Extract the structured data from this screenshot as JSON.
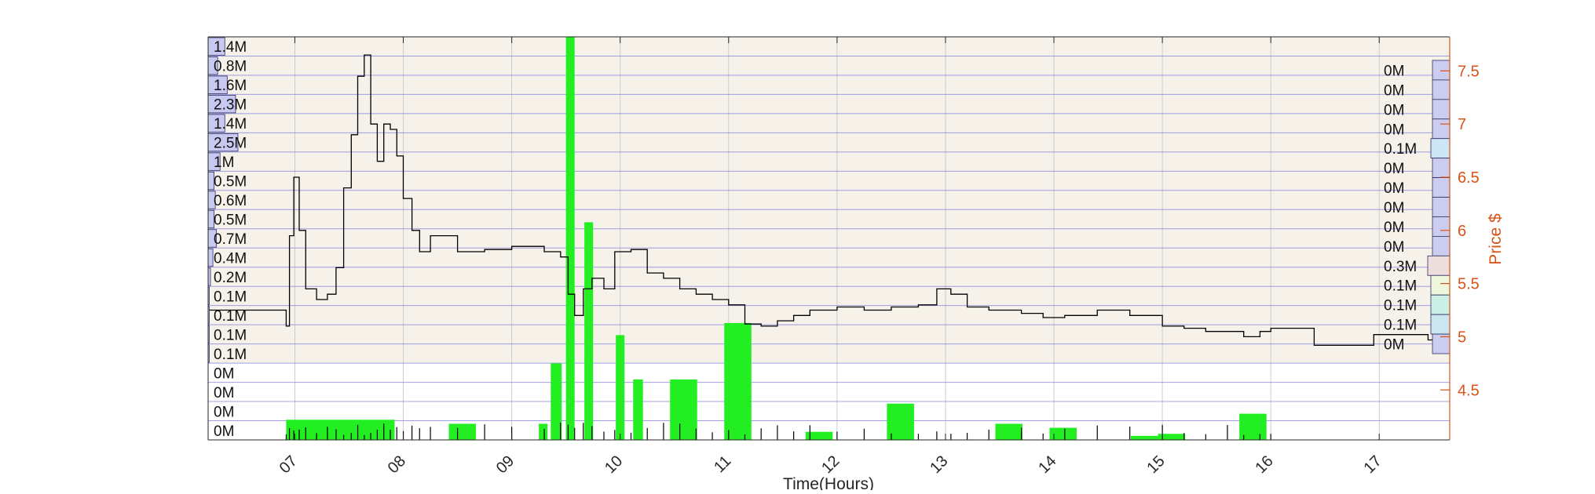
{
  "chart_data": {
    "type": "bar",
    "title": "",
    "xlabel": "Time(Hours)",
    "ylabel_right": "Price $",
    "x_range_hours": [
      6.2,
      17.65
    ],
    "x_ticks": [
      {
        "hour": 7,
        "label": "07"
      },
      {
        "hour": 8,
        "label": "08"
      },
      {
        "hour": 9,
        "label": "09"
      },
      {
        "hour": 10,
        "label": "10"
      },
      {
        "hour": 11,
        "label": "11"
      },
      {
        "hour": 12,
        "label": "12"
      },
      {
        "hour": 13,
        "label": "13"
      },
      {
        "hour": 14,
        "label": "14"
      },
      {
        "hour": 15,
        "label": "15"
      },
      {
        "hour": 16,
        "label": "16"
      },
      {
        "hour": 17,
        "label": "17"
      }
    ],
    "price_axis": {
      "range": [
        4.03,
        7.82
      ],
      "ticks": [
        {
          "value": 4.5,
          "label": "4.5"
        },
        {
          "value": 5,
          "label": "5"
        },
        {
          "value": 5.5,
          "label": "5.5"
        },
        {
          "value": 6,
          "label": "6"
        },
        {
          "value": 6.5,
          "label": "6.5"
        },
        {
          "value": 7,
          "label": "7"
        },
        {
          "value": 7.5,
          "label": "7.5"
        }
      ]
    },
    "grid": true,
    "colors": {
      "volume_bars": "#22ee22",
      "price_line": "#000000",
      "price_axis": "#d95319",
      "grid_blue": "#8080e0",
      "grid_light": "#cccccc",
      "upper_band": "#f6f2ea",
      "lower_band": "#ffffff"
    },
    "left_volume_profile": {
      "labels": [
        "1.4M",
        "0.8M",
        "1.6M",
        "2.3M",
        "1.4M",
        "2.5M",
        "1M",
        "0.5M",
        "0.6M",
        "0.5M",
        "0.7M",
        "0.4M",
        "0.2M",
        "0.1M",
        "0.1M",
        "0.1M",
        "0.1M",
        "0M",
        "0M",
        "0M",
        "0M"
      ],
      "values_millions": [
        1.4,
        0.8,
        1.6,
        2.3,
        1.4,
        2.5,
        1.0,
        0.5,
        0.6,
        0.5,
        0.7,
        0.4,
        0.2,
        0.1,
        0.1,
        0.1,
        0.1,
        0,
        0,
        0,
        0
      ]
    },
    "right_volume_profile": {
      "labels": [
        "0M",
        "0M",
        "0M",
        "0M",
        "0.1M",
        "0M",
        "0M",
        "0M",
        "0M",
        "0M",
        "0.3M",
        "0.1M",
        "0.1M",
        "0.1M",
        "0M"
      ],
      "values_millions": [
        0,
        0,
        0,
        0,
        0.1,
        0,
        0,
        0,
        0,
        0,
        0.3,
        0.1,
        0.1,
        0.1,
        0
      ],
      "colors": [
        "#ccccee",
        "#ccccee",
        "#ccccee",
        "#ccccee",
        "#cce6f6",
        "#ccccee",
        "#ccccee",
        "#ccccee",
        "#ccccee",
        "#ccccee",
        "#eedddd",
        "#eef6dd",
        "#ccf0e6",
        "#cce6f0",
        "#ccccee"
      ]
    },
    "volume_bars": [
      {
        "start": 6.92,
        "end": 7.42,
        "volume_rel": 0.05
      },
      {
        "start": 7.42,
        "end": 7.92,
        "volume_rel": 0.05
      },
      {
        "start": 8.42,
        "end": 8.67,
        "volume_rel": 0.04
      },
      {
        "start": 9.25,
        "end": 9.33,
        "volume_rel": 0.04
      },
      {
        "start": 9.36,
        "end": 9.46,
        "volume_rel": 0.19
      },
      {
        "start": 9.5,
        "end": 9.58,
        "volume_rel": 1.0
      },
      {
        "start": 9.67,
        "end": 9.75,
        "volume_rel": 0.54
      },
      {
        "start": 9.96,
        "end": 10.04,
        "volume_rel": 0.26
      },
      {
        "start": 10.12,
        "end": 10.21,
        "volume_rel": 0.15
      },
      {
        "start": 10.46,
        "end": 10.71,
        "volume_rel": 0.15
      },
      {
        "start": 10.96,
        "end": 11.21,
        "volume_rel": 0.29
      },
      {
        "start": 11.71,
        "end": 11.96,
        "volume_rel": 0.02
      },
      {
        "start": 12.46,
        "end": 12.71,
        "volume_rel": 0.09
      },
      {
        "start": 13.46,
        "end": 13.71,
        "volume_rel": 0.04
      },
      {
        "start": 13.96,
        "end": 14.21,
        "volume_rel": 0.03
      },
      {
        "start": 14.71,
        "end": 14.96,
        "volume_rel": 0.01
      },
      {
        "start": 14.96,
        "end": 15.21,
        "volume_rel": 0.015
      },
      {
        "start": 15.71,
        "end": 15.96,
        "volume_rel": 0.065
      }
    ],
    "price_series": [
      {
        "hour": 6.2,
        "price": 5.25
      },
      {
        "hour": 6.9,
        "price": 5.25
      },
      {
        "hour": 6.92,
        "price": 5.1
      },
      {
        "hour": 6.95,
        "price": 5.95
      },
      {
        "hour": 6.99,
        "price": 6.5
      },
      {
        "hour": 7.04,
        "price": 6.0
      },
      {
        "hour": 7.1,
        "price": 5.45
      },
      {
        "hour": 7.2,
        "price": 5.35
      },
      {
        "hour": 7.3,
        "price": 5.4
      },
      {
        "hour": 7.38,
        "price": 5.65
      },
      {
        "hour": 7.45,
        "price": 6.4
      },
      {
        "hour": 7.52,
        "price": 6.9
      },
      {
        "hour": 7.58,
        "price": 7.45
      },
      {
        "hour": 7.64,
        "price": 7.65
      },
      {
        "hour": 7.7,
        "price": 7.0
      },
      {
        "hour": 7.76,
        "price": 6.65
      },
      {
        "hour": 7.82,
        "price": 7.0
      },
      {
        "hour": 7.88,
        "price": 6.95
      },
      {
        "hour": 7.94,
        "price": 6.7
      },
      {
        "hour": 8.0,
        "price": 6.3
      },
      {
        "hour": 8.08,
        "price": 6.0
      },
      {
        "hour": 8.15,
        "price": 5.8
      },
      {
        "hour": 8.25,
        "price": 5.95
      },
      {
        "hour": 8.5,
        "price": 5.8
      },
      {
        "hour": 8.75,
        "price": 5.82
      },
      {
        "hour": 9.0,
        "price": 5.85
      },
      {
        "hour": 9.3,
        "price": 5.8
      },
      {
        "hour": 9.45,
        "price": 5.75
      },
      {
        "hour": 9.52,
        "price": 5.4
      },
      {
        "hour": 9.58,
        "price": 5.2
      },
      {
        "hour": 9.66,
        "price": 5.45
      },
      {
        "hour": 9.74,
        "price": 5.55
      },
      {
        "hour": 9.85,
        "price": 5.45
      },
      {
        "hour": 9.95,
        "price": 5.8
      },
      {
        "hour": 10.1,
        "price": 5.82
      },
      {
        "hour": 10.25,
        "price": 5.6
      },
      {
        "hour": 10.4,
        "price": 5.55
      },
      {
        "hour": 10.55,
        "price": 5.45
      },
      {
        "hour": 10.7,
        "price": 5.4
      },
      {
        "hour": 10.85,
        "price": 5.35
      },
      {
        "hour": 11.0,
        "price": 5.3
      },
      {
        "hour": 11.15,
        "price": 5.12
      },
      {
        "hour": 11.3,
        "price": 5.1
      },
      {
        "hour": 11.45,
        "price": 5.15
      },
      {
        "hour": 11.6,
        "price": 5.2
      },
      {
        "hour": 11.75,
        "price": 5.25
      },
      {
        "hour": 12.0,
        "price": 5.28
      },
      {
        "hour": 12.25,
        "price": 5.25
      },
      {
        "hour": 12.5,
        "price": 5.28
      },
      {
        "hour": 12.75,
        "price": 5.3
      },
      {
        "hour": 12.92,
        "price": 5.45
      },
      {
        "hour": 13.05,
        "price": 5.4
      },
      {
        "hour": 13.2,
        "price": 5.28
      },
      {
        "hour": 13.4,
        "price": 5.25
      },
      {
        "hour": 13.7,
        "price": 5.22
      },
      {
        "hour": 13.9,
        "price": 5.18
      },
      {
        "hour": 14.1,
        "price": 5.2
      },
      {
        "hour": 14.4,
        "price": 5.25
      },
      {
        "hour": 14.7,
        "price": 5.2
      },
      {
        "hour": 15.0,
        "price": 5.1
      },
      {
        "hour": 15.2,
        "price": 5.08
      },
      {
        "hour": 15.4,
        "price": 5.05
      },
      {
        "hour": 15.6,
        "price": 5.05
      },
      {
        "hour": 15.75,
        "price": 5.0
      },
      {
        "hour": 15.9,
        "price": 5.05
      },
      {
        "hour": 16.0,
        "price": 5.08
      },
      {
        "hour": 16.35,
        "price": 5.08
      },
      {
        "hour": 16.4,
        "price": 4.92
      },
      {
        "hour": 16.9,
        "price": 4.92
      },
      {
        "hour": 16.95,
        "price": 5.02
      },
      {
        "hour": 17.45,
        "price": 4.97
      },
      {
        "hour": 17.6,
        "price": 4.97
      }
    ]
  }
}
